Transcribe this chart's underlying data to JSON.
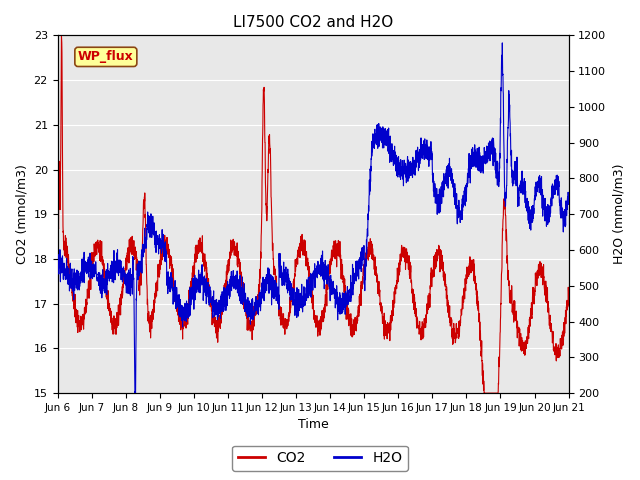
{
  "title": "LI7500 CO2 and H2O",
  "xlabel": "Time",
  "ylabel_left": "CO2 (mmol/m3)",
  "ylabel_right": "H2O (mmol/m3)",
  "ylim_left": [
    15.0,
    23.0
  ],
  "ylim_right": [
    200,
    1200
  ],
  "xtick_labels": [
    "Jun 6",
    "Jun 7",
    "Jun 8",
    "Jun 9",
    "Jun 10",
    "Jun 11",
    "Jun 12",
    "Jun 13",
    "Jun 14",
    "Jun 15",
    "Jun 16",
    "Jun 17",
    "Jun 18",
    "Jun 19",
    "Jun 20",
    "Jun 21"
  ],
  "co2_color": "#cc0000",
  "h2o_color": "#0000cc",
  "background_color": "#e8e8e8",
  "annotation_text": "WP_flux",
  "annotation_facecolor": "#ffff99",
  "annotation_edgecolor": "#8b4513",
  "annotation_textcolor": "#cc0000",
  "grid_color": "white",
  "line_width": 0.8,
  "title_fontsize": 11
}
